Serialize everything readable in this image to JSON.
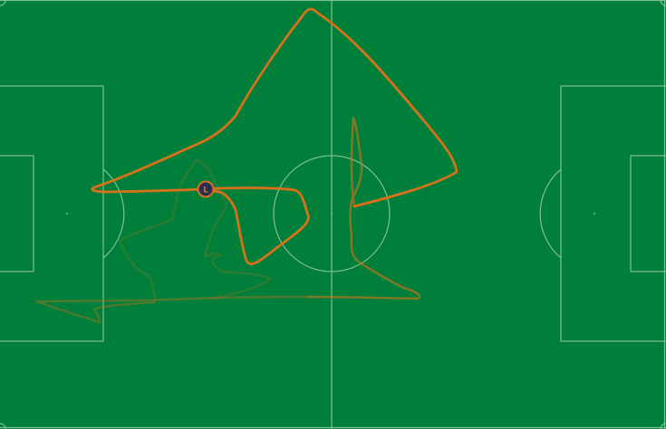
{
  "colors": {
    "pitch": "#007f3a",
    "lines": "#7fbf94",
    "trail": "#d6731a",
    "marker_fill": "#2b2f58",
    "marker_ring": "#d6731a"
  },
  "player": {
    "label": "L",
    "icon": "player-marker-icon"
  }
}
